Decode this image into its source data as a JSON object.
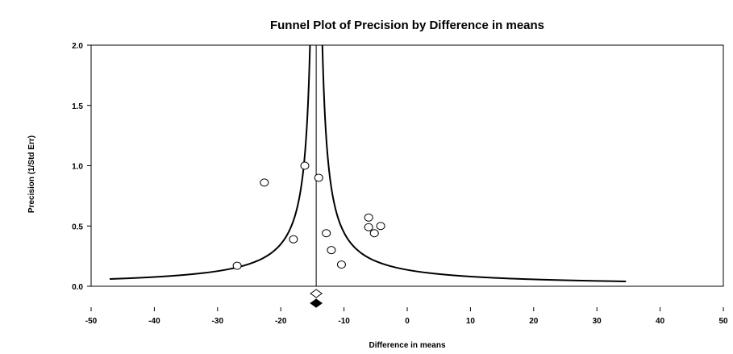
{
  "chart_data": {
    "type": "scatter",
    "title": "Funnel Plot of Precision by Difference in means",
    "xlabel": "Difference in means",
    "ylabel": "Precision (1/Std Err)",
    "xlim": [
      -50,
      50
    ],
    "ylim": [
      0,
      2.0
    ],
    "x_ticks": [
      "-50",
      "-40",
      "-30",
      "-20",
      "-10",
      "0",
      "10",
      "20",
      "30",
      "40",
      "50"
    ],
    "y_ticks": [
      "0.0",
      "0.5",
      "1.0",
      "1.5",
      "2.0"
    ],
    "grid": false,
    "points": [
      {
        "x": -26.9,
        "y": 0.17
      },
      {
        "x": -22.6,
        "y": 0.86
      },
      {
        "x": -18.0,
        "y": 0.39
      },
      {
        "x": -16.2,
        "y": 1.0
      },
      {
        "x": -14.0,
        "y": 0.9
      },
      {
        "x": -12.8,
        "y": 0.44
      },
      {
        "x": -12.0,
        "y": 0.3
      },
      {
        "x": -10.4,
        "y": 0.18
      },
      {
        "x": -6.1,
        "y": 0.57
      },
      {
        "x": -6.1,
        "y": 0.49
      },
      {
        "x": -5.2,
        "y": 0.44
      },
      {
        "x": -4.2,
        "y": 0.5
      }
    ],
    "pooled_estimate": -14.4,
    "summary_observed": {
      "x": -14.4,
      "style": "open-diamond"
    },
    "summary_imputed": {
      "x": -14.4,
      "style": "filled-diamond"
    }
  }
}
